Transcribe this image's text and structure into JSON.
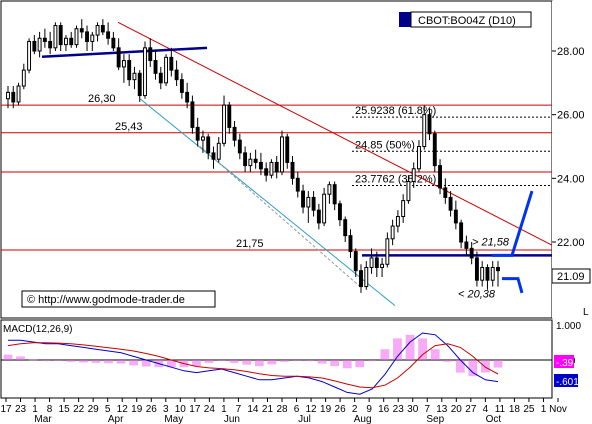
{
  "chart_data": {
    "type": "candlestick",
    "symbol_label": "CBOT:BO04Z (D10)",
    "watermark": "© http://www.godmode-trader.de",
    "price_axis": {
      "ylim": [
        20.0,
        29.0
      ],
      "ticks": [
        {
          "value": 28.0,
          "label": "28.00"
        },
        {
          "value": 26.0,
          "label": "26.00"
        },
        {
          "value": 24.0,
          "label": "24.00"
        },
        {
          "value": 22.0,
          "label": "22.00"
        }
      ],
      "last_price": "21.09",
      "scale_letter": "L"
    },
    "horizontal_levels": [
      {
        "value": 26.3,
        "label": "26,30",
        "color": "#cc0000"
      },
      {
        "value": 25.43,
        "label": "25,43",
        "color": "#cc0000"
      },
      {
        "value": 24.2,
        "label": "",
        "color": "#cc0000"
      },
      {
        "value": 21.75,
        "label": "21,75",
        "color": "#cc0000"
      }
    ],
    "fib_levels": [
      {
        "value": 25.9238,
        "label": "25.9238 (61.8%)"
      },
      {
        "value": 24.85,
        "label": "24.85 (50%)"
      },
      {
        "value": 23.7762,
        "label": "23.7762 (38.2%)"
      }
    ],
    "annotations": [
      {
        "label": "> 21,58",
        "value": 21.58
      },
      {
        "label": "< 20,38",
        "value": 20.38
      }
    ],
    "x_axis": {
      "tick_labels": [
        "17",
        "23",
        "1",
        "8",
        "15",
        "22",
        "29",
        "5",
        "12",
        "19",
        "26",
        "3",
        "10",
        "17",
        "24",
        "1",
        "7",
        "14",
        "21",
        "28",
        "6",
        "12",
        "19",
        "26",
        "2",
        "9",
        "16",
        "23",
        "30",
        "7",
        "13",
        "20",
        "27",
        "4",
        "11",
        "18",
        "25",
        "1",
        "Nov"
      ],
      "month_labels": [
        "Mar",
        "Apr",
        "May",
        "Jun",
        "Jul",
        "Aug",
        "Sep",
        "Oct"
      ]
    },
    "candles": [
      {
        "o": 26.5,
        "h": 26.9,
        "l": 26.2,
        "c": 26.7
      },
      {
        "o": 26.7,
        "h": 26.9,
        "l": 26.2,
        "c": 26.4
      },
      {
        "o": 26.4,
        "h": 27.0,
        "l": 26.3,
        "c": 26.9
      },
      {
        "o": 26.9,
        "h": 27.6,
        "l": 26.8,
        "c": 27.4
      },
      {
        "o": 27.4,
        "h": 28.4,
        "l": 27.3,
        "c": 28.3
      },
      {
        "o": 28.3,
        "h": 28.5,
        "l": 27.9,
        "c": 28.0
      },
      {
        "o": 28.0,
        "h": 28.6,
        "l": 27.8,
        "c": 28.4
      },
      {
        "o": 28.4,
        "h": 28.7,
        "l": 28.1,
        "c": 28.3
      },
      {
        "o": 28.3,
        "h": 28.6,
        "l": 27.9,
        "c": 28.1
      },
      {
        "o": 28.1,
        "h": 28.9,
        "l": 28.0,
        "c": 28.8
      },
      {
        "o": 28.8,
        "h": 28.9,
        "l": 28.0,
        "c": 28.2
      },
      {
        "o": 28.2,
        "h": 28.5,
        "l": 28.0,
        "c": 28.4
      },
      {
        "o": 28.4,
        "h": 28.6,
        "l": 28.1,
        "c": 28.2
      },
      {
        "o": 28.2,
        "h": 28.8,
        "l": 28.1,
        "c": 28.7
      },
      {
        "o": 28.7,
        "h": 29.0,
        "l": 28.4,
        "c": 28.6
      },
      {
        "o": 28.6,
        "h": 28.8,
        "l": 28.0,
        "c": 28.3
      },
      {
        "o": 28.3,
        "h": 28.6,
        "l": 28.0,
        "c": 28.5
      },
      {
        "o": 28.5,
        "h": 28.9,
        "l": 28.3,
        "c": 28.8
      },
      {
        "o": 28.8,
        "h": 29.0,
        "l": 28.5,
        "c": 28.6
      },
      {
        "o": 28.6,
        "h": 28.9,
        "l": 28.2,
        "c": 28.4
      },
      {
        "o": 28.4,
        "h": 28.6,
        "l": 28.0,
        "c": 28.1
      },
      {
        "o": 28.1,
        "h": 28.4,
        "l": 27.4,
        "c": 27.5
      },
      {
        "o": 27.5,
        "h": 27.9,
        "l": 27.0,
        "c": 27.7
      },
      {
        "o": 27.7,
        "h": 27.9,
        "l": 26.9,
        "c": 27.1
      },
      {
        "o": 27.1,
        "h": 27.5,
        "l": 26.8,
        "c": 27.3
      },
      {
        "o": 27.3,
        "h": 27.4,
        "l": 26.4,
        "c": 26.6
      },
      {
        "o": 26.6,
        "h": 28.3,
        "l": 26.5,
        "c": 28.1
      },
      {
        "o": 28.1,
        "h": 28.4,
        "l": 27.5,
        "c": 27.7
      },
      {
        "o": 27.7,
        "h": 28.0,
        "l": 27.1,
        "c": 27.3
      },
      {
        "o": 27.3,
        "h": 27.5,
        "l": 26.8,
        "c": 27.0
      },
      {
        "o": 27.0,
        "h": 27.9,
        "l": 26.9,
        "c": 27.8
      },
      {
        "o": 27.8,
        "h": 28.1,
        "l": 27.2,
        "c": 27.4
      },
      {
        "o": 27.4,
        "h": 27.7,
        "l": 26.9,
        "c": 27.1
      },
      {
        "o": 27.1,
        "h": 27.3,
        "l": 26.5,
        "c": 26.7
      },
      {
        "o": 26.7,
        "h": 27.0,
        "l": 26.2,
        "c": 26.4
      },
      {
        "o": 26.4,
        "h": 26.6,
        "l": 25.4,
        "c": 25.6
      },
      {
        "o": 25.6,
        "h": 25.9,
        "l": 25.0,
        "c": 25.2
      },
      {
        "o": 25.2,
        "h": 25.5,
        "l": 24.8,
        "c": 25.3
      },
      {
        "o": 25.3,
        "h": 25.4,
        "l": 24.6,
        "c": 24.8
      },
      {
        "o": 24.8,
        "h": 25.0,
        "l": 24.3,
        "c": 24.6
      },
      {
        "o": 24.6,
        "h": 25.3,
        "l": 24.5,
        "c": 25.1
      },
      {
        "o": 25.1,
        "h": 26.6,
        "l": 25.0,
        "c": 26.3
      },
      {
        "o": 26.3,
        "h": 26.4,
        "l": 25.4,
        "c": 25.6
      },
      {
        "o": 25.6,
        "h": 25.8,
        "l": 25.0,
        "c": 25.2
      },
      {
        "o": 25.2,
        "h": 25.4,
        "l": 24.6,
        "c": 24.8
      },
      {
        "o": 24.8,
        "h": 25.0,
        "l": 24.2,
        "c": 24.4
      },
      {
        "o": 24.4,
        "h": 24.8,
        "l": 24.2,
        "c": 24.6
      },
      {
        "o": 24.6,
        "h": 24.9,
        "l": 24.3,
        "c": 24.5
      },
      {
        "o": 24.5,
        "h": 24.8,
        "l": 24.1,
        "c": 24.3
      },
      {
        "o": 24.3,
        "h": 24.5,
        "l": 23.9,
        "c": 24.1
      },
      {
        "o": 24.1,
        "h": 24.6,
        "l": 24.0,
        "c": 24.5
      },
      {
        "o": 24.5,
        "h": 24.7,
        "l": 24.0,
        "c": 24.2
      },
      {
        "o": 24.2,
        "h": 25.5,
        "l": 24.1,
        "c": 25.3
      },
      {
        "o": 25.3,
        "h": 25.4,
        "l": 24.3,
        "c": 24.5
      },
      {
        "o": 24.5,
        "h": 24.7,
        "l": 23.8,
        "c": 24.0
      },
      {
        "o": 24.0,
        "h": 24.2,
        "l": 23.4,
        "c": 23.6
      },
      {
        "o": 23.6,
        "h": 23.8,
        "l": 22.9,
        "c": 23.1
      },
      {
        "o": 23.1,
        "h": 23.6,
        "l": 22.6,
        "c": 23.4
      },
      {
        "o": 23.4,
        "h": 23.6,
        "l": 22.8,
        "c": 23.0
      },
      {
        "o": 23.0,
        "h": 23.2,
        "l": 22.4,
        "c": 22.6
      },
      {
        "o": 22.6,
        "h": 23.7,
        "l": 22.5,
        "c": 23.5
      },
      {
        "o": 23.5,
        "h": 23.9,
        "l": 23.2,
        "c": 23.8
      },
      {
        "o": 23.8,
        "h": 23.9,
        "l": 23.0,
        "c": 23.2
      },
      {
        "o": 23.2,
        "h": 23.3,
        "l": 22.5,
        "c": 22.7
      },
      {
        "o": 22.7,
        "h": 22.8,
        "l": 22.0,
        "c": 22.2
      },
      {
        "o": 22.2,
        "h": 22.4,
        "l": 21.5,
        "c": 21.7
      },
      {
        "o": 21.7,
        "h": 21.8,
        "l": 20.9,
        "c": 21.1
      },
      {
        "o": 21.1,
        "h": 21.3,
        "l": 20.4,
        "c": 20.6
      },
      {
        "o": 20.6,
        "h": 21.4,
        "l": 20.5,
        "c": 21.2
      },
      {
        "o": 21.2,
        "h": 21.8,
        "l": 21.0,
        "c": 21.5
      },
      {
        "o": 21.5,
        "h": 21.7,
        "l": 20.9,
        "c": 21.2
      },
      {
        "o": 21.2,
        "h": 21.5,
        "l": 20.9,
        "c": 21.3
      },
      {
        "o": 21.3,
        "h": 22.3,
        "l": 21.2,
        "c": 22.1
      },
      {
        "o": 22.1,
        "h": 22.7,
        "l": 21.9,
        "c": 22.5
      },
      {
        "o": 22.5,
        "h": 23.0,
        "l": 22.3,
        "c": 22.8
      },
      {
        "o": 22.8,
        "h": 23.5,
        "l": 22.6,
        "c": 23.3
      },
      {
        "o": 23.3,
        "h": 24.1,
        "l": 23.2,
        "c": 23.9
      },
      {
        "o": 23.9,
        "h": 24.5,
        "l": 23.7,
        "c": 24.3
      },
      {
        "o": 24.3,
        "h": 25.2,
        "l": 24.2,
        "c": 25.0
      },
      {
        "o": 25.0,
        "h": 26.3,
        "l": 24.9,
        "c": 26.0
      },
      {
        "o": 26.0,
        "h": 26.2,
        "l": 25.2,
        "c": 25.4
      },
      {
        "o": 25.4,
        "h": 25.5,
        "l": 24.2,
        "c": 24.4
      },
      {
        "o": 24.4,
        "h": 24.6,
        "l": 23.5,
        "c": 23.7
      },
      {
        "o": 23.7,
        "h": 24.0,
        "l": 23.2,
        "c": 23.4
      },
      {
        "o": 23.4,
        "h": 23.6,
        "l": 22.8,
        "c": 23.0
      },
      {
        "o": 23.0,
        "h": 23.3,
        "l": 22.4,
        "c": 22.6
      },
      {
        "o": 22.6,
        "h": 22.7,
        "l": 21.8,
        "c": 22.0
      },
      {
        "o": 22.0,
        "h": 22.2,
        "l": 21.6,
        "c": 21.8
      },
      {
        "o": 21.8,
        "h": 22.0,
        "l": 21.3,
        "c": 21.5
      },
      {
        "o": 21.5,
        "h": 21.7,
        "l": 20.6,
        "c": 20.8
      },
      {
        "o": 20.8,
        "h": 21.4,
        "l": 20.6,
        "c": 21.2
      },
      {
        "o": 21.2,
        "h": 21.3,
        "l": 20.5,
        "c": 20.8
      },
      {
        "o": 20.8,
        "h": 21.4,
        "l": 20.6,
        "c": 21.2
      },
      {
        "o": 21.2,
        "h": 21.4,
        "l": 20.6,
        "c": 21.1
      }
    ],
    "macd": {
      "label": "MACD(12,26,9)",
      "ticks": [
        {
          "value": 1.0,
          "label": "1.000"
        },
        {
          "value": 0.0,
          "label": ".000"
        }
      ],
      "ylim": [
        -1.2,
        1.2
      ],
      "signal_value": "-.39",
      "macd_value": "-.601",
      "series": [
        {
          "name": "macd",
          "color": "#0000cc",
          "values": [
            0.55,
            0.55,
            0.5,
            0.45,
            0.45,
            0.4,
            0.35,
            0.3,
            0.25,
            0.2,
            0.1,
            0.0,
            -0.1,
            -0.2,
            -0.3,
            -0.35,
            -0.3,
            -0.25,
            -0.35,
            -0.45,
            -0.55,
            -0.55,
            -0.5,
            -0.45,
            -0.5,
            -0.6,
            -0.75,
            -0.9,
            -0.95,
            -0.8,
            -0.4,
            0.1,
            0.5,
            0.75,
            0.7,
            0.4,
            0.0,
            -0.35,
            -0.55,
            -0.6
          ]
        },
        {
          "name": "signal",
          "color": "#cc0000",
          "values": [
            0.4,
            0.45,
            0.48,
            0.48,
            0.47,
            0.45,
            0.42,
            0.38,
            0.34,
            0.3,
            0.25,
            0.18,
            0.1,
            0.0,
            -0.1,
            -0.18,
            -0.22,
            -0.24,
            -0.27,
            -0.32,
            -0.38,
            -0.43,
            -0.45,
            -0.45,
            -0.47,
            -0.5,
            -0.58,
            -0.67,
            -0.75,
            -0.77,
            -0.7,
            -0.5,
            -0.2,
            0.15,
            0.4,
            0.45,
            0.35,
            0.1,
            -0.2,
            -0.39
          ]
        }
      ]
    }
  }
}
